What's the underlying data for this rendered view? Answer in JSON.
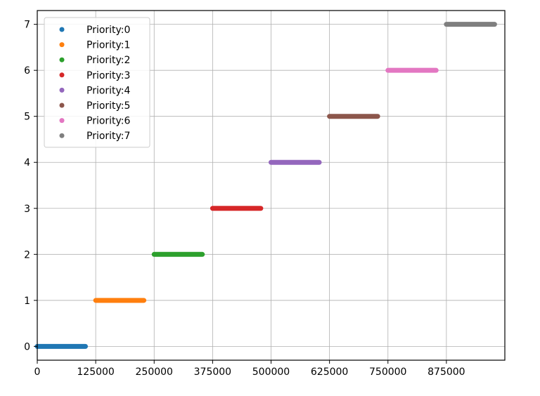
{
  "chart_data": {
    "type": "scatter",
    "title": "",
    "xlabel": "",
    "ylabel": "",
    "xlim": [
      0,
      1000000
    ],
    "ylim": [
      -0.3,
      7.3
    ],
    "grid": true,
    "legend_position": "upper-left",
    "xticks": [
      0,
      125000,
      250000,
      375000,
      500000,
      625000,
      750000,
      875000
    ],
    "xtick_labels": [
      "0",
      "125000",
      "250000",
      "375000",
      "500000",
      "625000",
      "750000",
      "875000"
    ],
    "yticks": [
      0,
      1,
      2,
      3,
      4,
      5,
      6,
      7
    ],
    "ytick_labels": [
      "0",
      "1",
      "2",
      "3",
      "4",
      "5",
      "6",
      "7"
    ],
    "series": [
      {
        "name": "Priority:0",
        "color": "#1f77b4",
        "x_range": [
          0,
          103000
        ],
        "y": 0
      },
      {
        "name": "Priority:1",
        "color": "#ff7f0e",
        "x_range": [
          125000,
          228000
        ],
        "y": 1
      },
      {
        "name": "Priority:2",
        "color": "#2ca02c",
        "x_range": [
          250000,
          353000
        ],
        "y": 2
      },
      {
        "name": "Priority:3",
        "color": "#d62728",
        "x_range": [
          375000,
          478000
        ],
        "y": 3
      },
      {
        "name": "Priority:4",
        "color": "#9467bd",
        "x_range": [
          500000,
          603000
        ],
        "y": 4
      },
      {
        "name": "Priority:5",
        "color": "#8c564b",
        "x_range": [
          625000,
          728000
        ],
        "y": 5
      },
      {
        "name": "Priority:6",
        "color": "#e377c2",
        "x_range": [
          750000,
          853000
        ],
        "y": 6
      },
      {
        "name": "Priority:7",
        "color": "#7f7f7f",
        "x_range": [
          875000,
          978000
        ],
        "y": 7
      }
    ]
  }
}
